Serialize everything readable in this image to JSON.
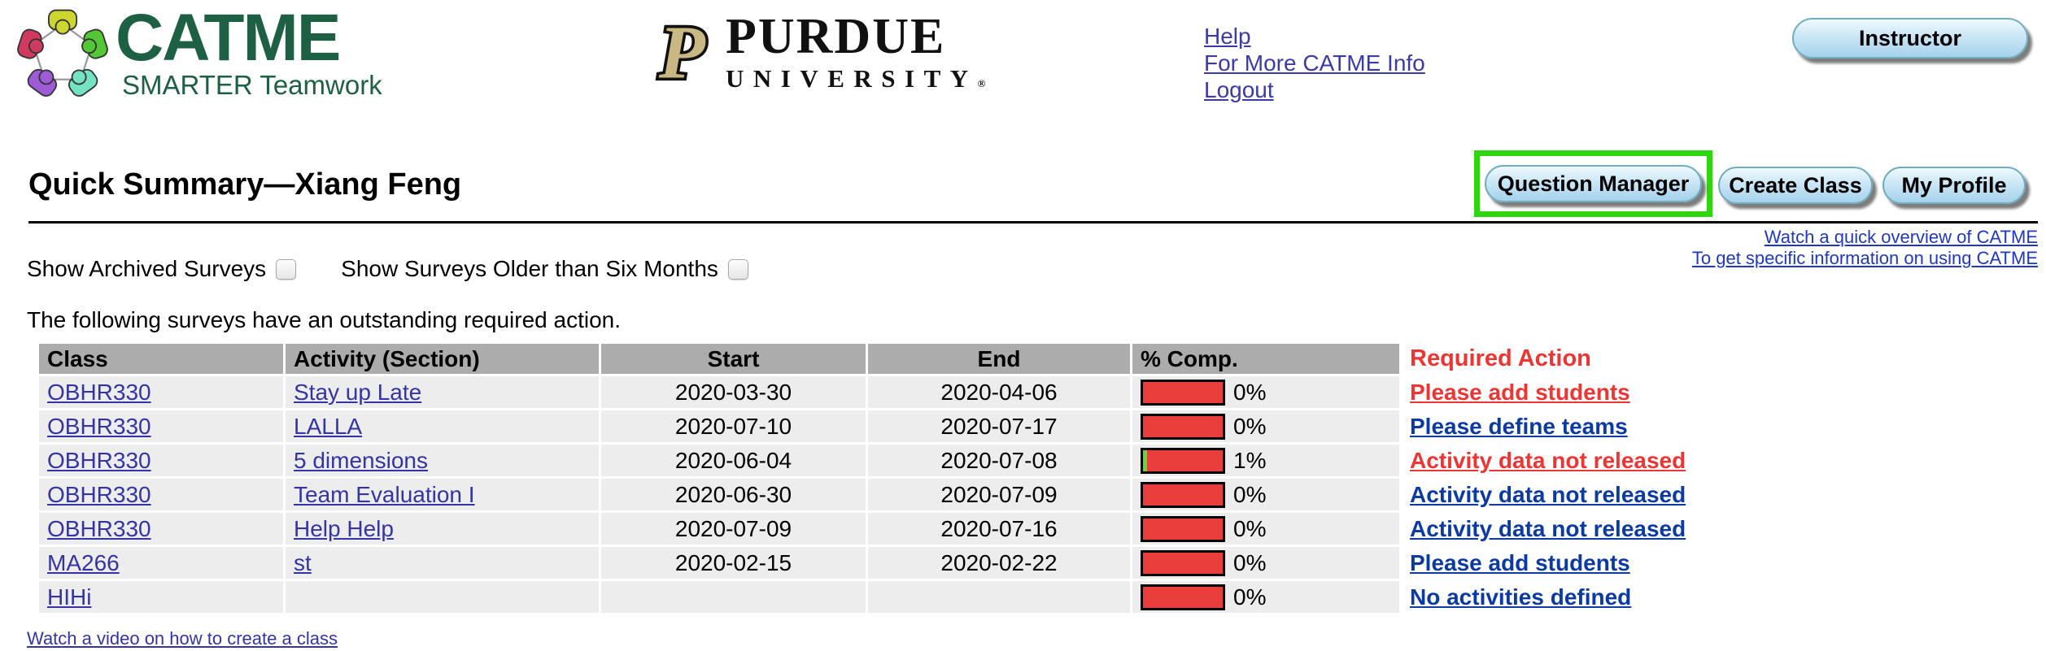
{
  "header": {
    "catme_logo": {
      "name": "CATME",
      "tagline": "SMARTER Teamwork"
    },
    "purdue_logo": {
      "initial": "P",
      "name": "PURDUE",
      "subname": "UNIVERSITY",
      "registered": "®"
    },
    "nav_links": [
      {
        "label": "Help"
      },
      {
        "label": "For More CATME Info"
      },
      {
        "label": "Logout"
      }
    ],
    "role_button": {
      "label": "Instructor"
    }
  },
  "title_bar": {
    "title": "Quick Summary—Xiang Feng",
    "buttons": [
      {
        "label": "Question Manager",
        "highlighted": true
      },
      {
        "label": "Create Class",
        "highlighted": false
      },
      {
        "label": "My Profile",
        "highlighted": false
      }
    ]
  },
  "filters": {
    "archived": {
      "label": "Show Archived Surveys",
      "checked": false
    },
    "older": {
      "label": "Show Surveys Older than Six Months",
      "checked": false
    }
  },
  "help_links": [
    {
      "label": "Watch a quick overview of CATME"
    },
    {
      "label": "To get specific information on using CATME"
    }
  ],
  "intro_text": "The following surveys have an outstanding required action.",
  "survey_table": {
    "headers": {
      "class": "Class",
      "activity": "Activity (Section)",
      "start": "Start",
      "end": "End",
      "pct": "% Comp.",
      "action": "Required Action"
    },
    "rows": [
      {
        "class": "OBHR330",
        "activity": "Stay up Late",
        "start": "2020-03-30",
        "end": "2020-04-06",
        "pct_label": "0%",
        "pct_value": 0,
        "action": "Please add students",
        "action_style": "red"
      },
      {
        "class": "OBHR330",
        "activity": "LALLA",
        "start": "2020-07-10",
        "end": "2020-07-17",
        "pct_label": "0%",
        "pct_value": 0,
        "action": "Please define teams",
        "action_style": "blue"
      },
      {
        "class": "OBHR330",
        "activity": "5 dimensions",
        "start": "2020-06-04",
        "end": "2020-07-08",
        "pct_label": "1%",
        "pct_value": 1,
        "action": "Activity data not released",
        "action_style": "red"
      },
      {
        "class": "OBHR330",
        "activity": "Team Evaluation I",
        "start": "2020-06-30",
        "end": "2020-07-09",
        "pct_label": "0%",
        "pct_value": 0,
        "action": "Activity data not released",
        "action_style": "blue"
      },
      {
        "class": "OBHR330",
        "activity": "Help Help",
        "start": "2020-07-09",
        "end": "2020-07-16",
        "pct_label": "0%",
        "pct_value": 0,
        "action": "Activity data not released",
        "action_style": "blue"
      },
      {
        "class": "MA266",
        "activity": "st",
        "start": "2020-02-15",
        "end": "2020-02-22",
        "pct_label": "0%",
        "pct_value": 0,
        "action": "Please add students",
        "action_style": "blue"
      },
      {
        "class": "HIHi",
        "activity": "",
        "start": "",
        "end": "",
        "pct_label": "0%",
        "pct_value": 0,
        "action": "No activities defined",
        "action_style": "blue"
      }
    ]
  },
  "footer_link": {
    "label": "Watch a video on how to create a class"
  },
  "icons": {
    "catme_mark": "ring-of-five-teammates-icon",
    "purdue_mark": "block-p-icon",
    "checkbox": "unchecked-checkbox",
    "progress_bar": "completion-bar"
  },
  "colors": {
    "catme_green": "#1D6044",
    "purdue_gold": "#C9B784",
    "nav_link_blue": "#3B3BA8",
    "table_link_blue": "#3434A4",
    "action_blue": "#0B3AA2",
    "action_red": "#EE3533",
    "bar_red": "#E93E3C",
    "bar_green": "#5FD838",
    "header_gray": "#ACACAC",
    "row_gray": "#EDEDED",
    "highlight_green": "#2FD60F",
    "button_border_teal": "#6FAEBE"
  }
}
